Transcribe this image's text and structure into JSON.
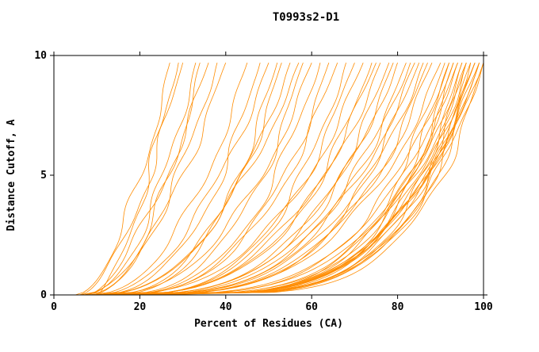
{
  "chart_data": {
    "type": "line",
    "title": "T0993s2-D1",
    "xlabel": "Percent of Residues (CA)",
    "ylabel": "Distance Cutoff, A",
    "xlim": [
      0,
      100
    ],
    "ylim": [
      0,
      10
    ],
    "x_ticks": [
      0,
      20,
      40,
      60,
      80,
      100
    ],
    "y_ticks": [
      0,
      5,
      10
    ],
    "grid": false,
    "legend": "none",
    "line_color": "#ff8c00",
    "axis_color": "#000000",
    "curve_max_y": 9.7,
    "curves": [
      [
        5,
        27,
        0.55,
        0.3
      ],
      [
        6,
        30,
        0.6,
        1.1
      ],
      [
        7,
        33,
        0.5,
        2.0
      ],
      [
        8,
        36,
        0.65,
        0.7
      ],
      [
        6,
        38,
        0.5,
        1.7
      ],
      [
        9,
        40,
        0.6,
        2.6
      ],
      [
        7,
        34,
        0.45,
        0.2
      ],
      [
        10,
        29,
        0.7,
        1.4
      ],
      [
        8,
        45,
        0.45,
        0.5
      ],
      [
        9,
        48,
        0.4,
        1.2
      ],
      [
        10,
        50,
        0.5,
        2.2
      ],
      [
        11,
        52,
        0.38,
        0.8
      ],
      [
        9,
        55,
        0.42,
        1.9
      ],
      [
        12,
        58,
        0.35,
        2.8
      ],
      [
        10,
        60,
        0.4,
        0.4
      ],
      [
        13,
        62,
        0.36,
        1.5
      ],
      [
        11,
        64,
        0.33,
        2.4
      ],
      [
        14,
        66,
        0.38,
        0.9
      ],
      [
        12,
        68,
        0.3,
        1.8
      ],
      [
        15,
        70,
        0.35,
        2.9
      ],
      [
        10,
        57,
        0.45,
        0.1
      ],
      [
        13,
        53,
        0.4,
        2.5
      ],
      [
        9,
        72,
        0.34,
        0.6
      ],
      [
        10,
        74,
        0.3,
        1.3
      ],
      [
        12,
        76,
        0.33,
        2.1
      ],
      [
        11,
        78,
        0.29,
        0.9
      ],
      [
        13,
        80,
        0.31,
        1.7
      ],
      [
        12,
        82,
        0.28,
        2.6
      ],
      [
        14,
        84,
        0.3,
        0.3
      ],
      [
        10,
        85,
        0.27,
        1.0
      ],
      [
        15,
        86,
        0.29,
        1.9
      ],
      [
        11,
        87,
        0.26,
        2.7
      ],
      [
        13,
        88,
        0.28,
        0.5
      ],
      [
        16,
        83,
        0.33,
        1.6
      ],
      [
        12,
        79,
        0.3,
        2.3
      ],
      [
        14,
        75,
        0.35,
        0.8
      ],
      [
        8,
        90,
        0.26,
        0.4
      ],
      [
        9,
        91,
        0.22,
        1.1
      ],
      [
        10,
        92,
        0.24,
        2.0
      ],
      [
        11,
        93,
        0.2,
        0.7
      ],
      [
        9,
        94,
        0.23,
        1.8
      ],
      [
        12,
        95,
        0.19,
        2.7
      ],
      [
        10,
        96,
        0.22,
        0.2
      ],
      [
        13,
        97,
        0.18,
        1.5
      ],
      [
        11,
        98,
        0.21,
        2.4
      ],
      [
        8,
        99,
        0.18,
        0.9
      ],
      [
        12,
        100,
        0.2,
        1.7
      ],
      [
        9,
        100,
        0.17,
        2.8
      ],
      [
        14,
        98,
        0.22,
        0.5
      ],
      [
        10,
        99,
        0.19,
        1.2
      ],
      [
        15,
        97,
        0.23,
        2.1
      ],
      [
        11,
        96,
        0.18,
        0.8
      ],
      [
        13,
        95,
        0.21,
        1.9
      ],
      [
        16,
        94,
        0.24,
        2.6
      ],
      [
        12,
        93,
        0.19,
        0.3
      ],
      [
        17,
        92,
        0.22,
        1.0
      ],
      [
        18,
        96,
        0.2,
        1.9
      ],
      [
        20,
        98,
        0.24,
        2.7
      ],
      [
        22,
        99,
        0.26,
        0.6
      ],
      [
        25,
        100,
        0.28,
        1.4
      ]
    ]
  }
}
